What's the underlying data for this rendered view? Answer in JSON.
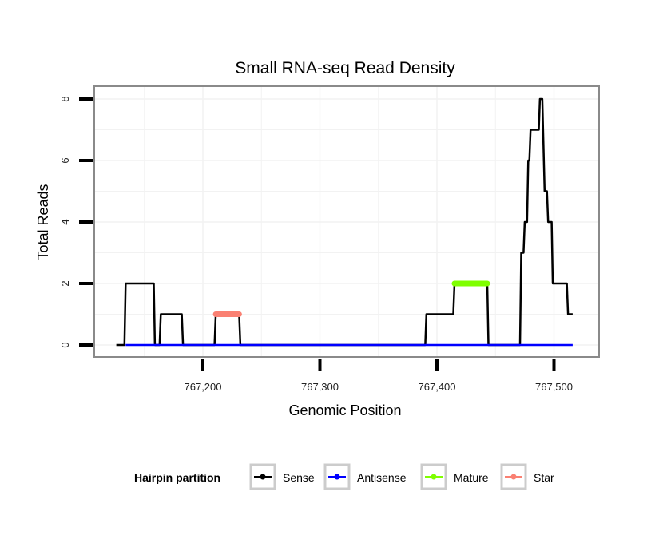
{
  "chart_data": {
    "type": "line",
    "title": "Small RNA-seq Read Density",
    "xlabel": "Genomic Position",
    "ylabel": "Total Reads",
    "xlim": [
      767126,
      767521
    ],
    "ylim": [
      -0.35,
      8.4
    ],
    "x_ticks": [
      767200,
      767300,
      767400,
      767500
    ],
    "x_tick_labels": [
      "767,200",
      "767,300",
      "767,400",
      "767,500"
    ],
    "y_ticks": [
      0,
      2,
      4,
      6,
      8
    ],
    "y_tick_labels": [
      "0",
      "2",
      "4",
      "6",
      "8"
    ],
    "grid": true,
    "legend": {
      "title": "Hairpin partition",
      "placement": "bottom",
      "entries": [
        {
          "name": "Sense",
          "color": "#000000"
        },
        {
          "name": "Antisense",
          "color": "#0000ff"
        },
        {
          "name": "Mature",
          "color": "#7fff00"
        },
        {
          "name": "Star",
          "color": "#fa8072"
        }
      ]
    },
    "series": [
      {
        "name": "Sense",
        "color": "#000000",
        "points": [
          [
            767126,
            0
          ],
          [
            767133,
            0
          ],
          [
            767134,
            2
          ],
          [
            767158,
            2
          ],
          [
            767159,
            0
          ],
          [
            767163,
            0
          ],
          [
            767164,
            1
          ],
          [
            767182,
            1
          ],
          [
            767183,
            0
          ],
          [
            767210,
            0
          ],
          [
            767211,
            1
          ],
          [
            767231,
            1
          ],
          [
            767232,
            0
          ],
          [
            767390,
            0
          ],
          [
            767391,
            1
          ],
          [
            767414,
            1
          ],
          [
            767415,
            2
          ],
          [
            767443,
            2
          ],
          [
            767444,
            0
          ],
          [
            767471,
            0
          ],
          [
            767472,
            3
          ],
          [
            767474,
            3
          ],
          [
            767475,
            4
          ],
          [
            767477,
            4
          ],
          [
            767478,
            6
          ],
          [
            767479,
            6
          ],
          [
            767480,
            7
          ],
          [
            767487,
            7
          ],
          [
            767488,
            8
          ],
          [
            767490,
            8
          ],
          [
            767492,
            5
          ],
          [
            767494,
            5
          ],
          [
            767495,
            4
          ],
          [
            767498,
            4
          ],
          [
            767499,
            2
          ],
          [
            767511,
            2
          ],
          [
            767512,
            1
          ],
          [
            767516,
            1
          ]
        ]
      },
      {
        "name": "Antisense",
        "color": "#0000ff",
        "points": [
          [
            767134,
            0
          ],
          [
            767516,
            0
          ]
        ]
      },
      {
        "name": "Mature",
        "color": "#7fff00",
        "points": [
          [
            767415,
            2
          ],
          [
            767443,
            2
          ]
        ]
      },
      {
        "name": "Star",
        "color": "#fa8072",
        "points": [
          [
            767211,
            1
          ],
          [
            767231,
            1
          ]
        ]
      }
    ]
  }
}
